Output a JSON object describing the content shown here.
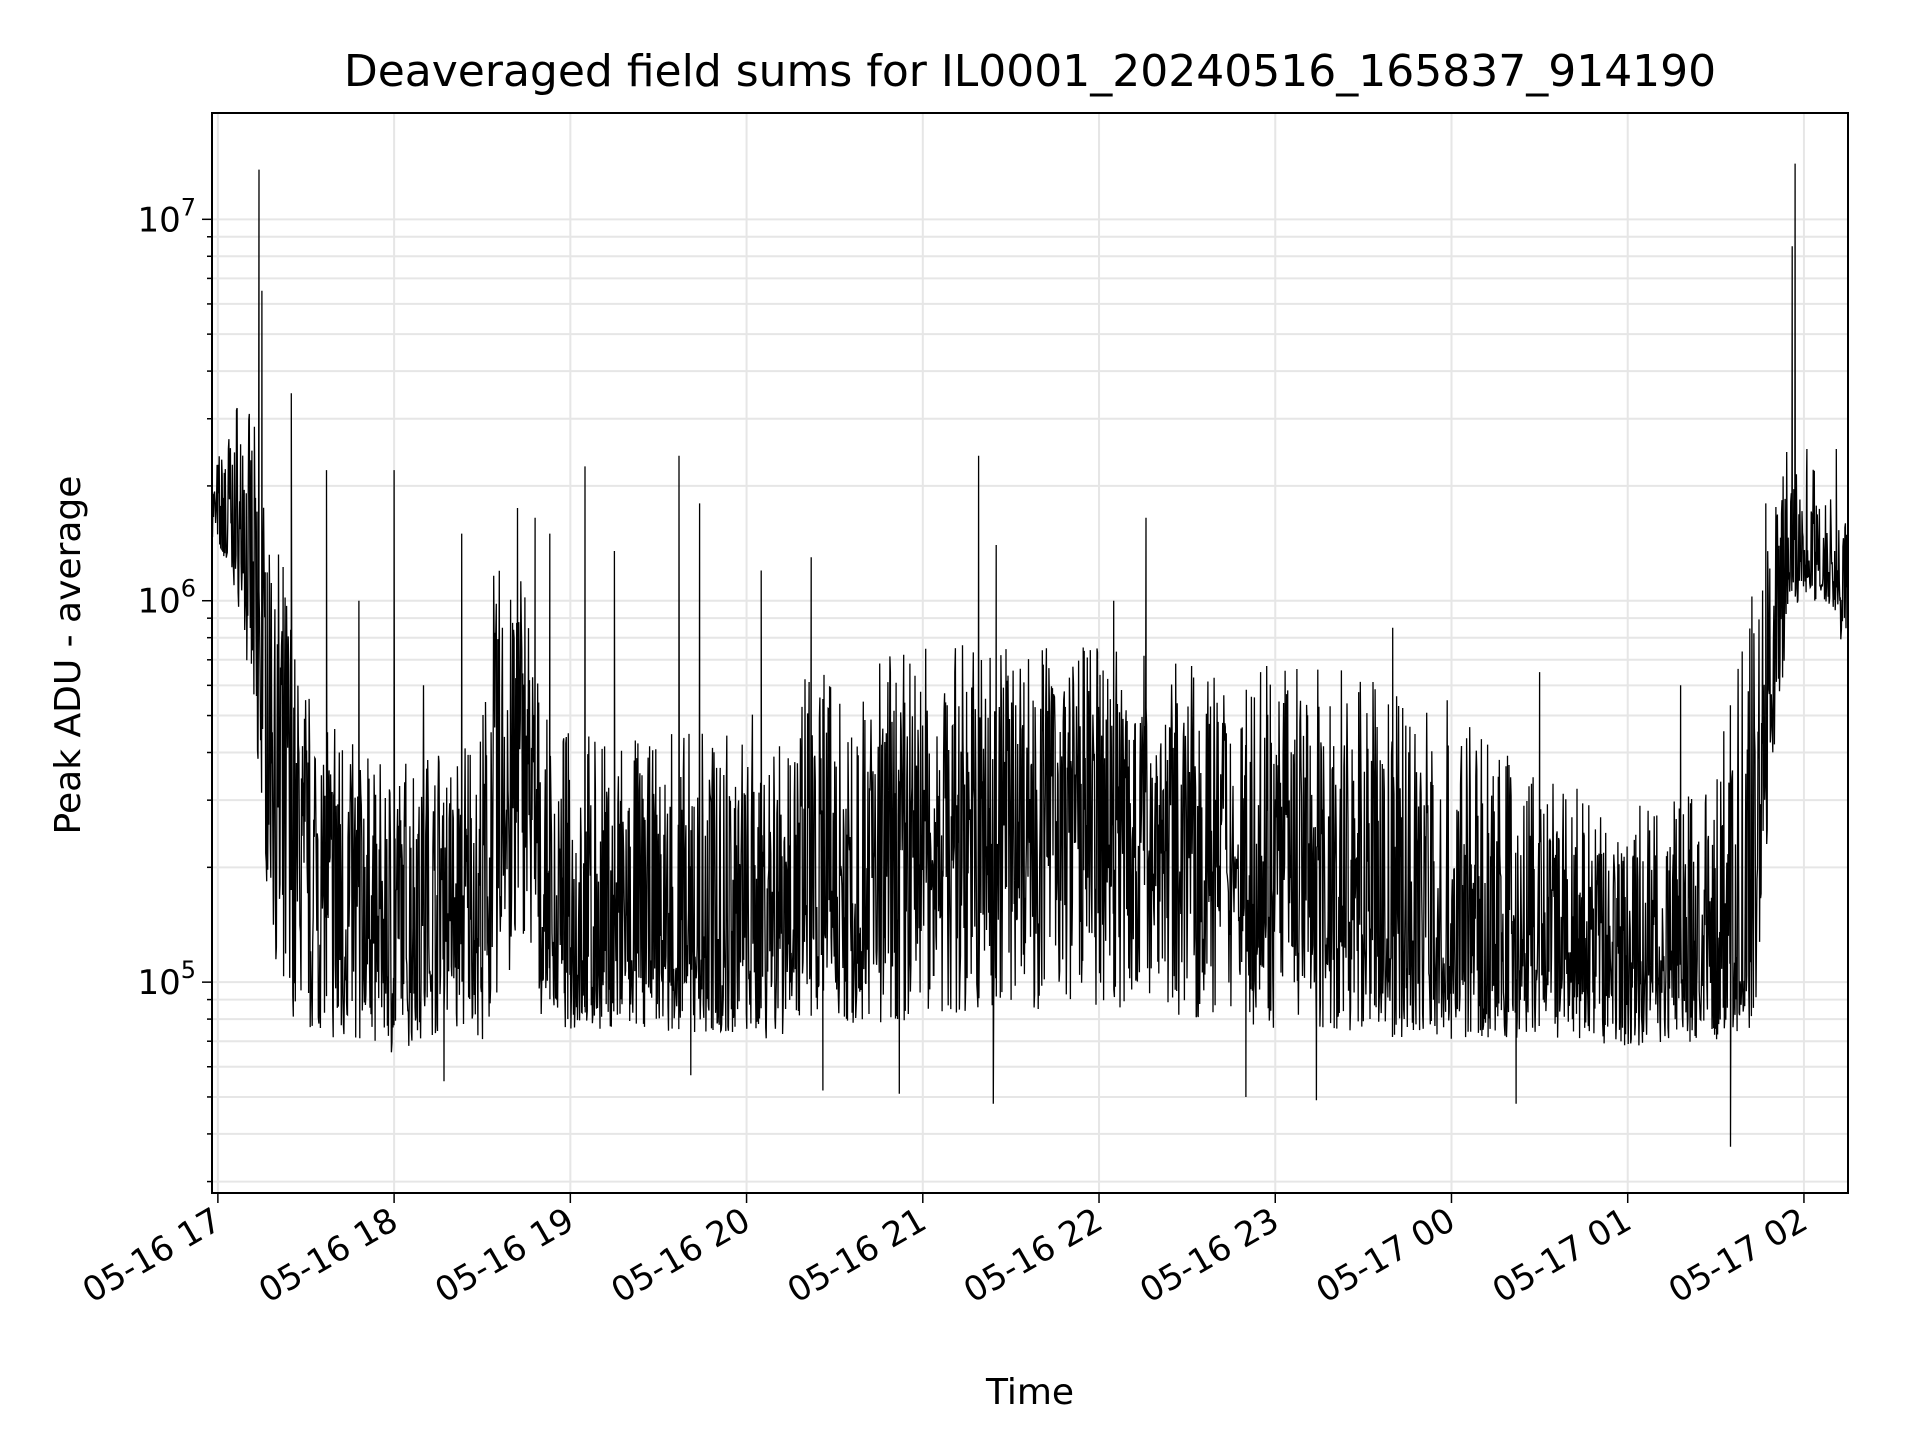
{
  "chart_data": {
    "type": "line",
    "title": "Deaveraged field sums for IL0001_20240516_165837_914190",
    "xlabel": "Time",
    "ylabel": "Peak ADU - average",
    "y_scale": "log",
    "grid": true,
    "line_color": "#000000",
    "grid_color": "#e6e6e6",
    "x_tick_labels": [
      "05-16 17",
      "05-16 18",
      "05-16 19",
      "05-16 20",
      "05-16 21",
      "05-16 22",
      "05-16 23",
      "05-17 00",
      "05-17 01",
      "05-17 02"
    ],
    "x_ticks": [
      "2024-05-16 17:00",
      "2024-05-16 18:00",
      "2024-05-16 19:00",
      "2024-05-16 20:00",
      "2024-05-16 21:00",
      "2024-05-16 22:00",
      "2024-05-16 23:00",
      "2024-05-17 00:00",
      "2024-05-17 01:00",
      "2024-05-17 02:00"
    ],
    "xlim": [
      "2024-05-16 16:58",
      "2024-05-17 02:15"
    ],
    "y_ticks": [
      {
        "base": "10",
        "exp": "5",
        "value": 100000
      },
      {
        "base": "10",
        "exp": "6",
        "value": 1000000
      },
      {
        "base": "10",
        "exp": "7",
        "value": 10000000
      }
    ],
    "ylim": [
      28000,
      19000000
    ],
    "series": [
      {
        "x": [
          "2024-05-16 16:58",
          "2024-05-16 17:04",
          "2024-05-16 17:08",
          "2024-05-16 17:12",
          "2024-05-16 17:16",
          "2024-05-16 17:20",
          "2024-05-16 17:25",
          "2024-05-16 17:30",
          "2024-05-16 17:40",
          "2024-05-16 17:50",
          "2024-05-16 18:00",
          "2024-05-16 18:10",
          "2024-05-16 18:20",
          "2024-05-16 18:30",
          "2024-05-16 18:35",
          "2024-05-16 18:45",
          "2024-05-16 18:50",
          "2024-05-16 19:00",
          "2024-05-16 19:30",
          "2024-05-16 20:00",
          "2024-05-16 20:30",
          "2024-05-16 21:00",
          "2024-05-16 21:30",
          "2024-05-16 22:00",
          "2024-05-16 22:30",
          "2024-05-16 23:00",
          "2024-05-16 23:30",
          "2024-05-17 00:00",
          "2024-05-17 00:30",
          "2024-05-17 01:00",
          "2024-05-17 01:30",
          "2024-05-17 01:40",
          "2024-05-17 01:45",
          "2024-05-17 01:50",
          "2024-05-17 01:55",
          "2024-05-17 02:00",
          "2024-05-17 02:05",
          "2024-05-17 02:10",
          "2024-05-17 02:15"
        ],
        "median": [
          1800000,
          1400000,
          1300000,
          900000,
          500000,
          350000,
          250000,
          180000,
          160000,
          150000,
          130000,
          150000,
          140000,
          130000,
          300000,
          350000,
          140000,
          125000,
          120000,
          125000,
          150000,
          220000,
          280000,
          260000,
          220000,
          180000,
          140000,
          120000,
          110000,
          105000,
          110000,
          120000,
          300000,
          700000,
          1200000,
          1300000,
          1250000,
          1200000,
          1100000
        ],
        "low": [
          1400000,
          1200000,
          900000,
          500000,
          200000,
          110000,
          80000,
          75000,
          70000,
          70000,
          65000,
          70000,
          75000,
          70000,
          90000,
          120000,
          80000,
          75000,
          75000,
          70000,
          75000,
          80000,
          85000,
          85000,
          80000,
          75000,
          72000,
          70000,
          70000,
          68000,
          68000,
          68000,
          100000,
          400000,
          900000,
          1000000,
          1000000,
          900000,
          700000
        ],
        "high": [
          2100000,
          3000000,
          3500000,
          3000000,
          2000000,
          1600000,
          900000,
          600000,
          500000,
          400000,
          350000,
          450000,
          400000,
          500000,
          1500000,
          1300000,
          500000,
          450000,
          450000,
          500000,
          700000,
          750000,
          800000,
          750000,
          700000,
          680000,
          650000,
          550000,
          350000,
          300000,
          350000,
          1000000,
          1800000,
          2500000,
          2500000,
          2400000,
          2200000,
          2000000,
          1800000
        ],
        "spikes": [
          {
            "x": "2024-05-16 17:14",
            "y": 13500000
          },
          {
            "x": "2024-05-16 17:15",
            "y": 6500000
          },
          {
            "x": "2024-05-16 17:25",
            "y": 3500000
          },
          {
            "x": "2024-05-16 17:37",
            "y": 2200000
          },
          {
            "x": "2024-05-16 17:48",
            "y": 1000000
          },
          {
            "x": "2024-05-16 18:00",
            "y": 2200000
          },
          {
            "x": "2024-05-16 18:10",
            "y": 600000
          },
          {
            "x": "2024-05-16 18:23",
            "y": 1500000
          },
          {
            "x": "2024-05-16 18:42",
            "y": 1750000
          },
          {
            "x": "2024-05-16 18:48",
            "y": 1650000
          },
          {
            "x": "2024-05-16 18:53",
            "y": 1500000
          },
          {
            "x": "2024-05-16 19:05",
            "y": 2250000
          },
          {
            "x": "2024-05-16 19:15",
            "y": 1350000
          },
          {
            "x": "2024-05-16 19:37",
            "y": 2400000
          },
          {
            "x": "2024-05-16 19:44",
            "y": 1800000
          },
          {
            "x": "2024-05-16 20:05",
            "y": 1200000
          },
          {
            "x": "2024-05-16 20:22",
            "y": 1300000
          },
          {
            "x": "2024-05-16 21:19",
            "y": 2400000
          },
          {
            "x": "2024-05-16 21:25",
            "y": 1400000
          },
          {
            "x": "2024-05-16 22:05",
            "y": 1000000
          },
          {
            "x": "2024-05-16 22:16",
            "y": 1650000
          },
          {
            "x": "2024-05-16 22:55",
            "y": 650000
          },
          {
            "x": "2024-05-16 23:40",
            "y": 850000
          },
          {
            "x": "2024-05-17 00:30",
            "y": 650000
          },
          {
            "x": "2024-05-17 01:18",
            "y": 600000
          },
          {
            "x": "2024-05-17 01:47",
            "y": 1800000
          },
          {
            "x": "2024-05-17 01:56",
            "y": 8500000
          },
          {
            "x": "2024-05-17 01:57",
            "y": 14000000
          },
          {
            "x": "2024-05-17 02:01",
            "y": 2500000
          },
          {
            "x": "2024-05-17 02:11",
            "y": 2500000
          }
        ],
        "dips": [
          {
            "x": "2024-05-16 18:17",
            "y": 55000
          },
          {
            "x": "2024-05-16 19:41",
            "y": 57000
          },
          {
            "x": "2024-05-16 20:26",
            "y": 52000
          },
          {
            "x": "2024-05-16 20:52",
            "y": 51000
          },
          {
            "x": "2024-05-16 21:24",
            "y": 48000
          },
          {
            "x": "2024-05-16 22:50",
            "y": 50000
          },
          {
            "x": "2024-05-16 23:14",
            "y": 49000
          },
          {
            "x": "2024-05-17 00:22",
            "y": 48000
          },
          {
            "x": "2024-05-17 01:35",
            "y": 37000
          }
        ]
      }
    ]
  }
}
